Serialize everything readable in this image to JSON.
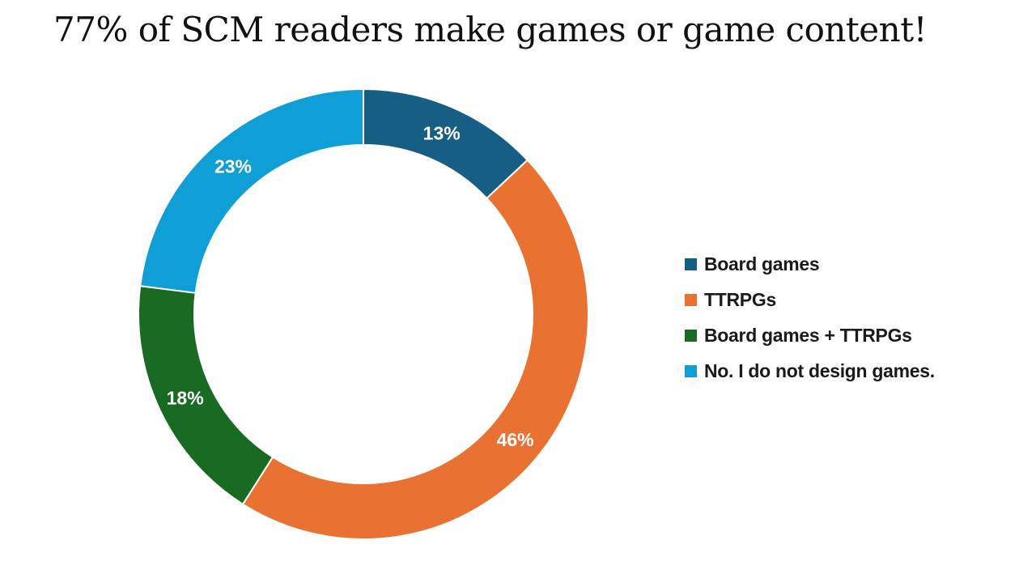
{
  "chart_data": {
    "type": "pie",
    "variant": "donut",
    "title": "77% of SCM readers make games or game content!",
    "categories": [
      "Board games",
      "TTRPGs",
      "Board games + TTRPGs",
      "No. I do not design games."
    ],
    "values": [
      13,
      46,
      18,
      23
    ],
    "data_labels": [
      "13%",
      "46%",
      "18%",
      "23%"
    ],
    "colors": [
      "#175e84",
      "#e97132",
      "#196b24",
      "#0f9ed5"
    ],
    "legend_position": "right"
  }
}
